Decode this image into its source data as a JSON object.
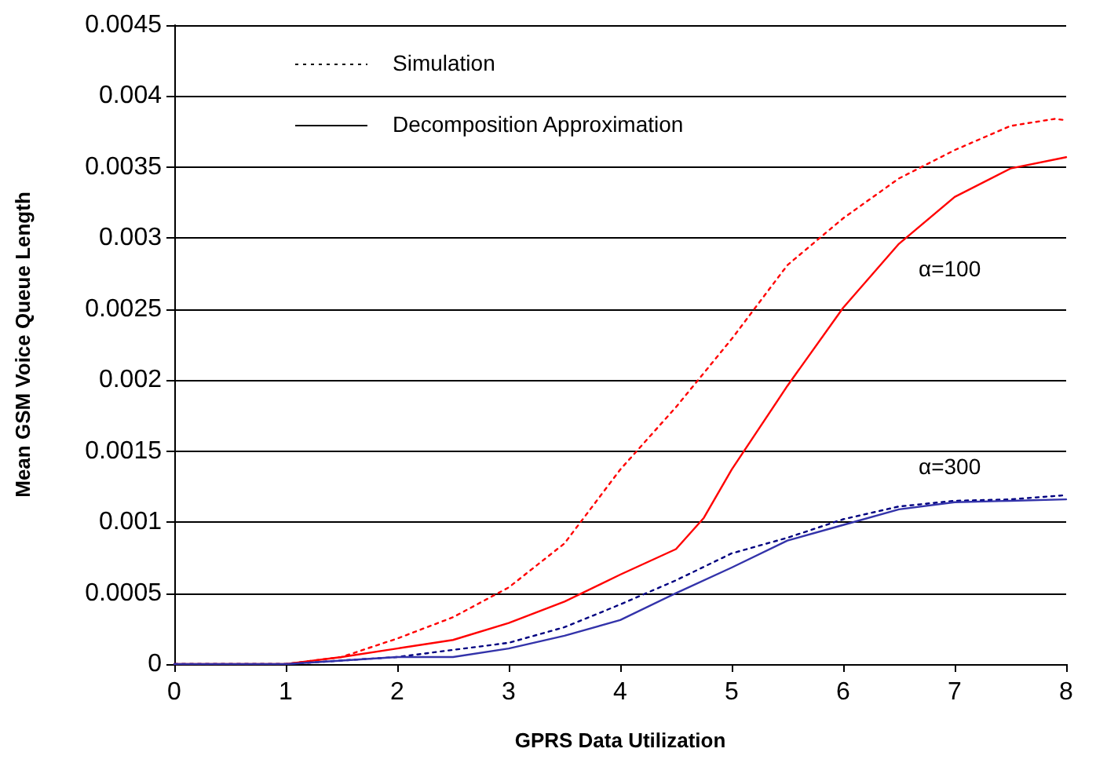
{
  "chart_data": {
    "type": "line",
    "xlabel": "GPRS Data Utilization",
    "ylabel": "Mean GSM Voice Queue Length",
    "xlim": [
      0,
      8
    ],
    "xticks": [
      0,
      1,
      2,
      3,
      4,
      5,
      6,
      7,
      8
    ],
    "ylim": [
      0,
      0.0045
    ],
    "yticks": [
      0,
      0.0005,
      0.001,
      0.0015,
      0.002,
      0.0025,
      0.003,
      0.0035,
      0.004,
      0.0045
    ],
    "grid": "y",
    "marker": "none",
    "annotations": [
      "Simulation",
      "Decomposition Approximation",
      "α=100",
      "α=300"
    ],
    "series": [
      {
        "color": "#ff0000",
        "line_style": "dotted",
        "x": [
          0,
          1,
          1.5,
          2,
          2.5,
          3,
          3.5,
          4,
          4.5,
          5,
          5.5,
          6,
          6.5,
          7,
          7.5,
          7.9,
          8
        ],
        "values": [
          0,
          0,
          5e-05,
          0.00018,
          0.00033,
          0.00054,
          0.00085,
          0.00137,
          0.00181,
          0.00229,
          0.00281,
          0.00314,
          0.00342,
          0.00362,
          0.00379,
          0.00384,
          0.00383
        ]
      },
      {
        "color": "#ff0000",
        "line_style": "solid",
        "x": [
          0,
          1,
          1.5,
          2,
          2.5,
          3,
          3.5,
          4,
          4.5,
          4.75,
          5,
          5.5,
          6,
          6.5,
          7,
          7.5,
          8
        ],
        "values": [
          0,
          0,
          5e-05,
          0.00011,
          0.00017,
          0.00029,
          0.00044,
          0.00063,
          0.00081,
          0.00103,
          0.00137,
          0.00196,
          0.00251,
          0.00296,
          0.00329,
          0.00349,
          0.00357
        ]
      },
      {
        "color": "#000080",
        "line_style": "dotted",
        "x": [
          0,
          1,
          2,
          2.5,
          3,
          3.5,
          4,
          4.5,
          5,
          5.5,
          6,
          6.5,
          7,
          7.5,
          8
        ],
        "values": [
          0,
          0,
          5e-05,
          0.0001,
          0.00015,
          0.00026,
          0.00042,
          0.00059,
          0.00078,
          0.00089,
          0.00102,
          0.00111,
          0.00115,
          0.00116,
          0.00119
        ]
      },
      {
        "color": "#3333aa",
        "line_style": "solid",
        "x": [
          0,
          1,
          2,
          2.5,
          3,
          3.5,
          4,
          4.5,
          5,
          5.5,
          6,
          6.5,
          7,
          7.5,
          8
        ],
        "values": [
          0,
          0,
          5e-05,
          5e-05,
          0.00011,
          0.0002,
          0.00031,
          0.0005,
          0.00068,
          0.00087,
          0.00098,
          0.00109,
          0.00114,
          0.00115,
          0.00116
        ]
      }
    ]
  }
}
